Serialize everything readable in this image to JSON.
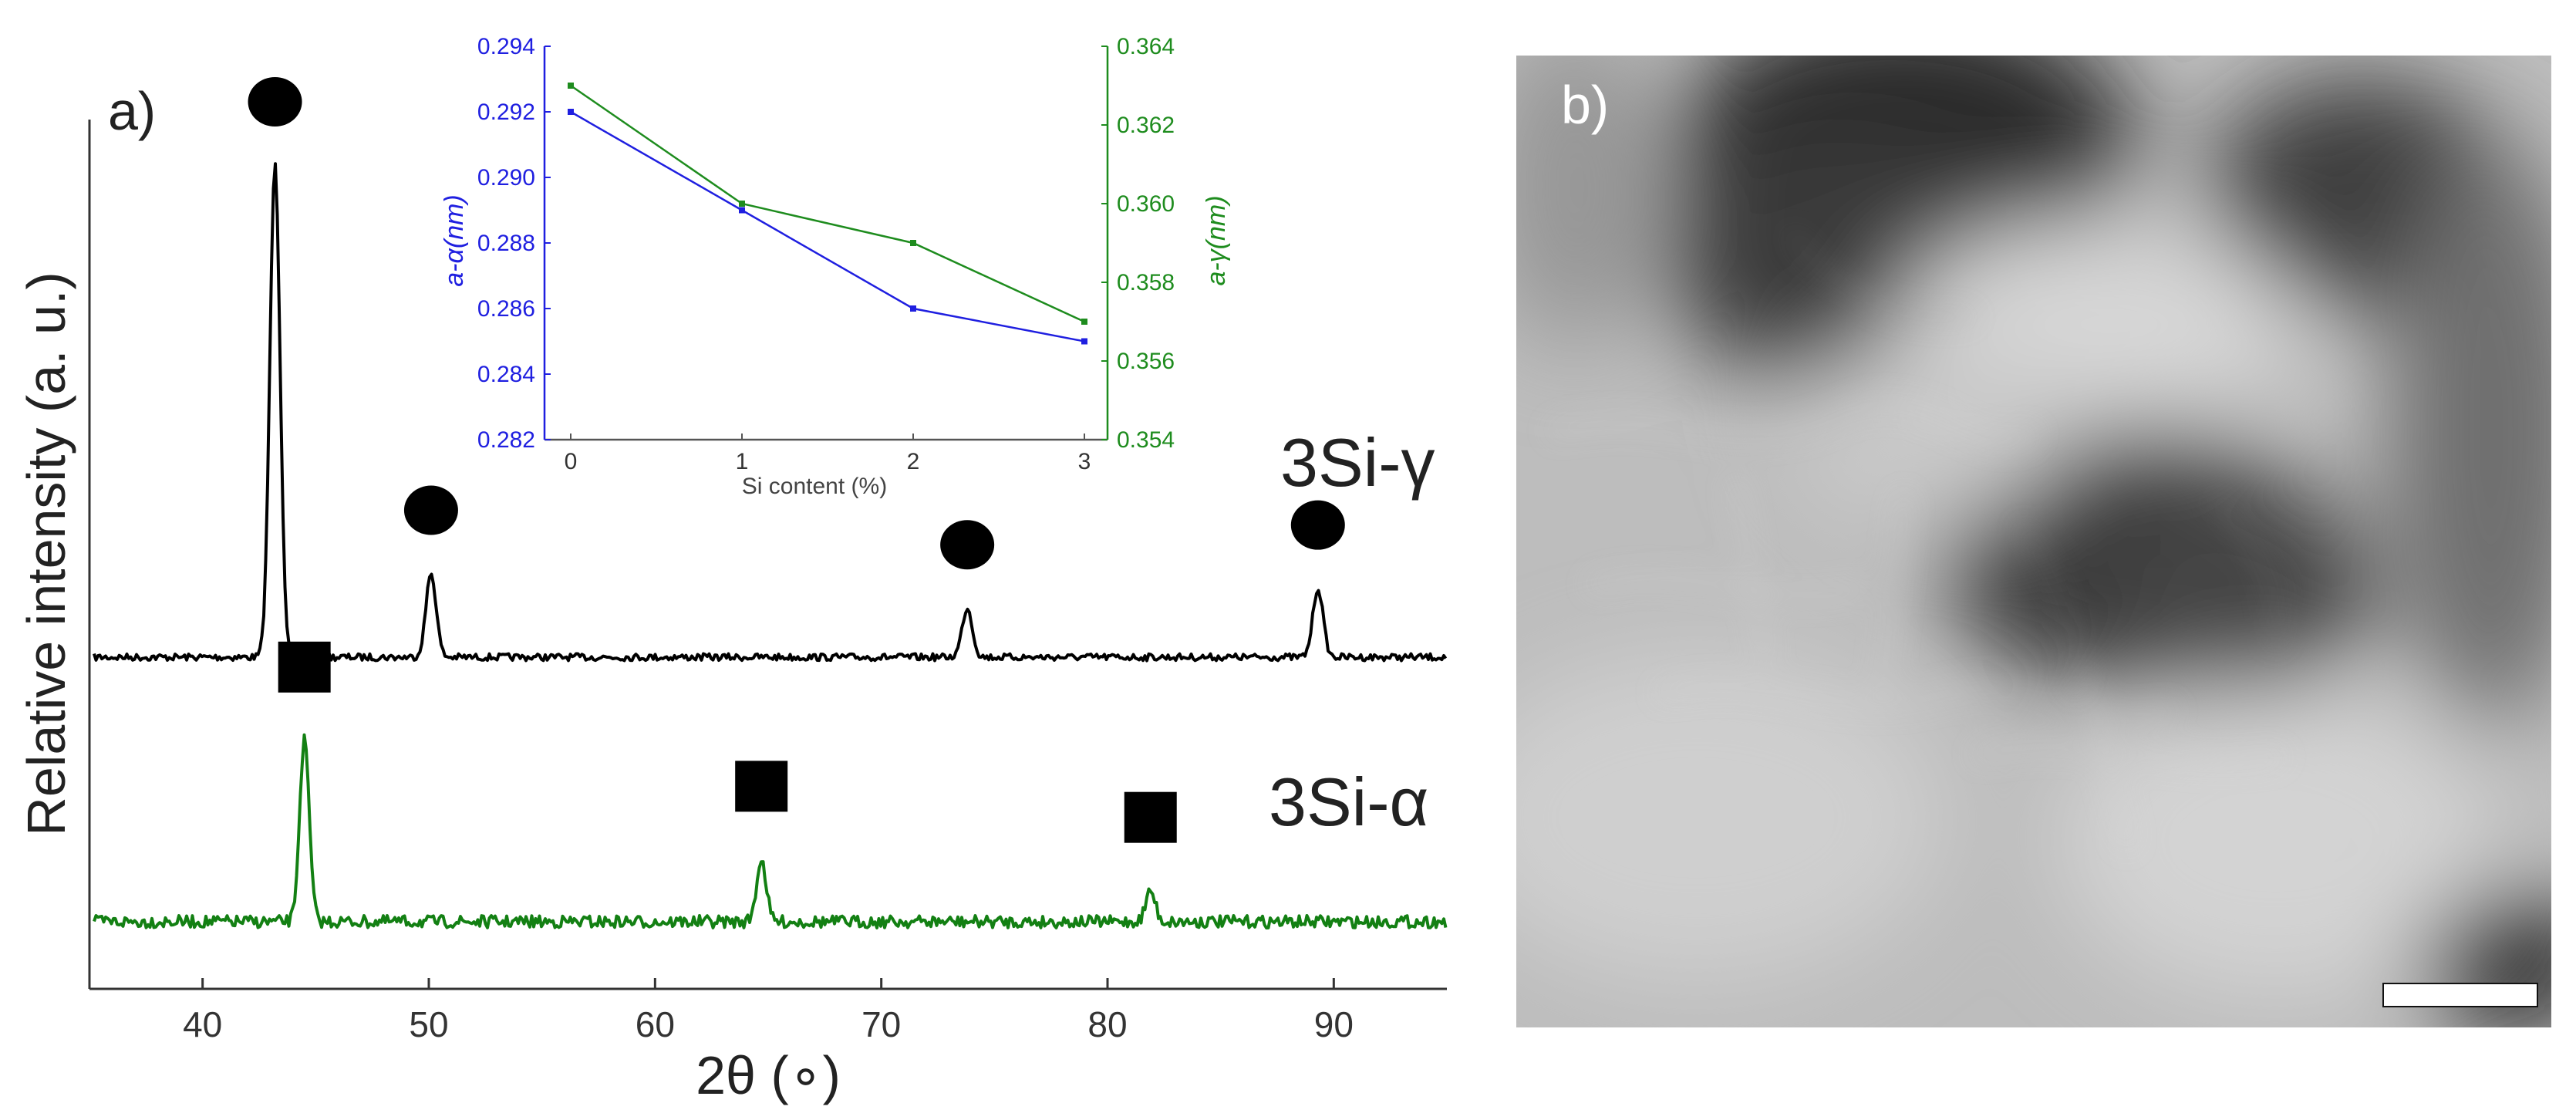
{
  "panel_a": {
    "label": "a)",
    "xlabel": "2θ (∘)",
    "ylabel": "Relative intensity (a. u.)",
    "xticks": [
      "40",
      "50",
      "60",
      "70",
      "80",
      "90"
    ],
    "curve_labels": {
      "gamma": "3Si-γ",
      "alpha": "3Si-α"
    }
  },
  "inset": {
    "xlabel": "Si content (%)",
    "ylabel_left": "a-α(nm)",
    "ylabel_right": "a-γ(nm)",
    "xticks": [
      "0",
      "1",
      "2",
      "3"
    ],
    "yticks_left": [
      "0.282",
      "0.284",
      "0.286",
      "0.288",
      "0.290",
      "0.292",
      "0.294"
    ],
    "yticks_right": [
      "0.354",
      "0.356",
      "0.358",
      "0.360",
      "0.362",
      "0.364"
    ]
  },
  "panel_b": {
    "label": "b)"
  },
  "colors": {
    "gamma": "#000000",
    "alpha": "#138013",
    "inset_left": "#1f1fe0",
    "inset_right": "#1e8c1e"
  },
  "chart_data": [
    {
      "type": "line",
      "title": "",
      "xlabel": "2θ (∘)",
      "ylabel": "Relative intensity (a. u.)",
      "xlim": [
        35,
        95
      ],
      "series": [
        {
          "name": "3Si-γ",
          "marker": "circle",
          "peaks": [
            {
              "x": 43.2,
              "height": 1.0
            },
            {
              "x": 50.1,
              "height": 0.17
            },
            {
              "x": 73.8,
              "height": 0.1
            },
            {
              "x": 89.3,
              "height": 0.14
            }
          ]
        },
        {
          "name": "3Si-α",
          "marker": "square",
          "peaks": [
            {
              "x": 44.5,
              "height": 0.35
            },
            {
              "x": 64.7,
              "height": 0.12
            },
            {
              "x": 81.9,
              "height": 0.06
            }
          ]
        }
      ]
    },
    {
      "type": "line",
      "title": "",
      "xlabel": "Si content (%)",
      "x": [
        0,
        1,
        2,
        3
      ],
      "series": [
        {
          "name": "a-α(nm)",
          "axis": "left",
          "values": [
            0.292,
            0.289,
            0.286,
            0.285
          ],
          "ylim": [
            0.282,
            0.294
          ]
        },
        {
          "name": "a-γ(nm)",
          "axis": "right",
          "values": [
            0.363,
            0.36,
            0.359,
            0.357
          ],
          "ylim": [
            0.354,
            0.364
          ]
        }
      ]
    }
  ]
}
